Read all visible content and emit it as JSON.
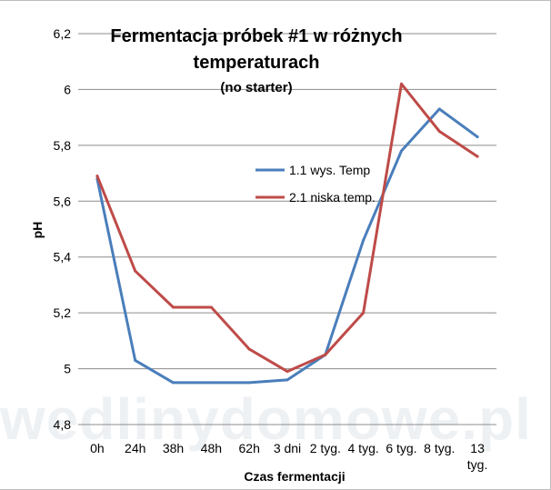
{
  "chart_data": {
    "type": "line",
    "title": "Fermentacja próbek #1 w różnych",
    "title_line2": "temperaturach",
    "subtitle": "(no starter)",
    "xlabel": "Czas fermentacji",
    "ylabel": "pH",
    "ylim": [
      4.8,
      6.2
    ],
    "yticks": [
      "4,8",
      "5",
      "5,2",
      "5,4",
      "5,6",
      "5,8",
      "6",
      "6,2"
    ],
    "yticks_values": [
      4.8,
      5.0,
      5.2,
      5.4,
      5.6,
      5.8,
      6.0,
      6.2
    ],
    "grid": "horizontal",
    "legend_position": "right",
    "categories": [
      "0h",
      "24h",
      "38h",
      "48h",
      "62h",
      "3 dni",
      "2 tyg.",
      "4 tyg.",
      "6 tyg.",
      "8 tyg.",
      "13 tyg."
    ],
    "series": [
      {
        "name": "1.1 wys. Temp",
        "color": "#4a7ebb",
        "values": [
          5.68,
          5.03,
          4.95,
          4.95,
          4.95,
          4.96,
          5.05,
          5.46,
          5.78,
          5.93,
          5.83
        ]
      },
      {
        "name": "2.1 niska temp.",
        "color": "#be4b48",
        "values": [
          5.69,
          5.35,
          5.22,
          5.22,
          5.07,
          4.99,
          5.05,
          5.2,
          6.02,
          5.85,
          5.76
        ]
      }
    ],
    "watermark": "wedlinydomowe.pl"
  }
}
